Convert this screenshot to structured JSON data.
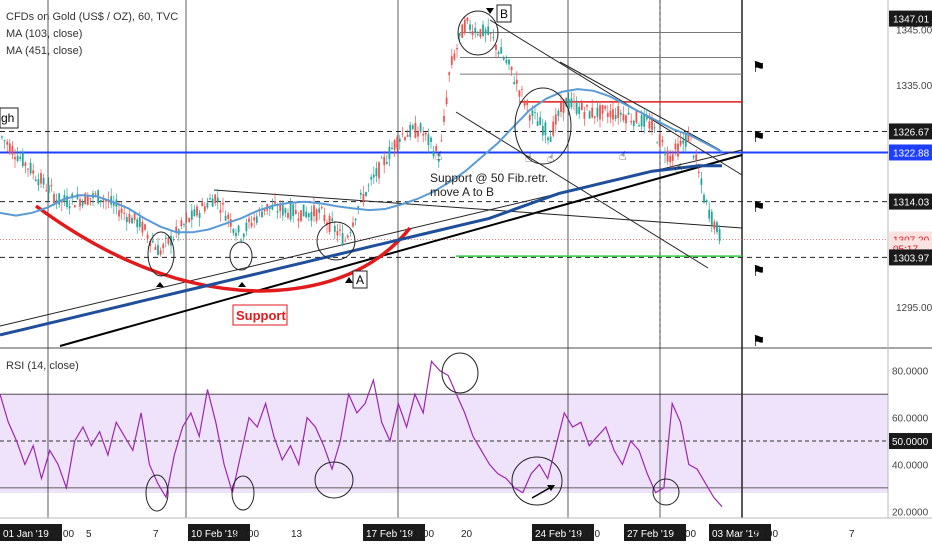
{
  "legend": {
    "title": "CFDs on Gold (US$ / OZ), 60, TVC",
    "ma1": "MA (103, close)",
    "ma2": "MA (451, close)",
    "rsi": "RSI (14, close)"
  },
  "corner_label": "gh",
  "colors": {
    "price_up": "#26a69a",
    "price_down": "#ef5350",
    "ma_fast": "#5b9bd5",
    "ma_slow": "#1f4e9a",
    "support_curve": "#e31a1c",
    "blue_line": "#1f3fff",
    "fib_red": "#e31a1c",
    "green_line": "#2ecc40",
    "rsi_line": "#9c27b0",
    "rsi_band": "#efe3fb"
  },
  "chart_data": [
    {
      "type": "candlestick",
      "title": "CFDs on Gold (US$ / OZ), 60, TVC",
      "y_axis": {
        "ylim": [
          1288,
          1350
        ],
        "ticks": [
          1295.0,
          1305.0,
          1314.03,
          1326.67,
          1335.0,
          1345.0
        ],
        "tick_labels": [
          "1295.00",
          "1305.00",
          "1314.03",
          "1326.67",
          "1335.00",
          "1345.00"
        ]
      },
      "price_labels": [
        {
          "value": 1347.01,
          "label": "1347.01",
          "style": "dark"
        },
        {
          "value": 1326.67,
          "label": "1326.67",
          "style": "dark"
        },
        {
          "value": 1322.88,
          "label": "1322.88",
          "style": "blue"
        },
        {
          "value": 1314.03,
          "label": "1314.03",
          "style": "dark"
        },
        {
          "value": 1307.2,
          "label": "1307.20",
          "style": "red"
        },
        {
          "value": 1305.6,
          "label": "05:17",
          "style": "red"
        },
        {
          "value": 1303.97,
          "label": "1303.97",
          "style": "dark"
        }
      ],
      "x_axis": {
        "tick_labels": [
          "01 Jan '19",
          "02:00",
          "5",
          "7",
          "10 Feb '19",
          "23:00",
          "13",
          "17 Feb '19",
          "23:00",
          "20",
          "24 Feb '19",
          "23:00",
          "27 Feb '19",
          "14:00",
          "03 Mar '19",
          "23:00",
          "7"
        ]
      },
      "series": [
        {
          "name": "MA (103, close)",
          "values": [
            1312,
            1311.5,
            1312,
            1313,
            1314.5,
            1315.2,
            1315,
            1314,
            1312.8,
            1311,
            1309.5,
            1308.5,
            1308.5,
            1309,
            1310,
            1311,
            1312.3,
            1313.3,
            1313.8,
            1314,
            1313.7,
            1313.2,
            1312.8,
            1312.5,
            1312.7,
            1313.5,
            1314.5,
            1315.8,
            1317.5,
            1319.5,
            1322,
            1324.5,
            1327.5,
            1330.5,
            1332.5,
            1333.8,
            1334.3,
            1334,
            1333,
            1331.5,
            1330,
            1328.5,
            1327,
            1326,
            1324.5,
            1323
          ]
        },
        {
          "name": "MA (451, close)",
          "values": [
            1290,
            1291,
            1292,
            1293,
            1294,
            1295,
            1296,
            1297,
            1298,
            1299,
            1300,
            1301,
            1302,
            1303,
            1304,
            1305,
            1306,
            1307,
            1308,
            1309,
            1310,
            1311,
            1312.5,
            1314,
            1315.5,
            1316.5,
            1317.5,
            1318.5,
            1319.5,
            1320,
            1320.5,
            1320.5
          ]
        }
      ],
      "horizontal_levels": [
        {
          "value": 1326.67,
          "style": "black dashed"
        },
        {
          "value": 1314.03,
          "style": "black dashed"
        },
        {
          "value": 1303.97,
          "style": "black dashed"
        },
        {
          "value": 1322.88,
          "style": "blue solid"
        },
        {
          "value": 1332.0,
          "style": "red solid (50 Fib retracement)"
        },
        {
          "value": 1304.2,
          "style": "green solid"
        },
        {
          "value": 1344.5,
          "style": "grey solid"
        },
        {
          "value": 1340.0,
          "style": "grey solid"
        },
        {
          "value": 1337.0,
          "style": "grey solid"
        }
      ],
      "annotations": {
        "support_label": "Support",
        "fib_note_line1": "Support @ 50 Fib.retr.",
        "fib_note_line2": "move A to B",
        "point_a": "A",
        "point_b": "B"
      }
    },
    {
      "type": "line",
      "title": "RSI (14, close)",
      "y_axis": {
        "ylim": [
          18,
          88
        ],
        "ticks": [
          20,
          40,
          50,
          60,
          80
        ],
        "tick_labels": [
          "20.0000",
          "40.0000",
          "50.0000",
          "60.0000",
          "80.0000"
        ]
      },
      "levels": [
        70,
        50,
        30
      ],
      "price_label": "50.0000",
      "series": [
        {
          "name": "RSI (14, close)",
          "values": [
            70,
            58,
            50,
            40,
            48,
            34,
            46,
            40,
            30,
            50,
            56,
            48,
            54,
            44,
            58,
            52,
            46,
            62,
            40,
            32,
            26,
            44,
            56,
            62,
            52,
            72,
            58,
            40,
            28,
            44,
            60,
            56,
            66,
            52,
            42,
            48,
            40,
            60,
            56,
            48,
            38,
            50,
            70,
            62,
            66,
            76,
            58,
            50,
            66,
            56,
            70,
            62,
            84,
            80,
            78,
            70,
            62,
            52,
            46,
            40,
            36,
            34,
            30,
            28,
            36,
            40,
            34,
            48,
            62,
            56,
            58,
            48,
            52,
            56,
            46,
            40,
            50,
            46,
            36,
            28,
            30,
            66,
            58,
            40,
            38,
            32,
            26,
            22
          ]
        }
      ]
    }
  ]
}
